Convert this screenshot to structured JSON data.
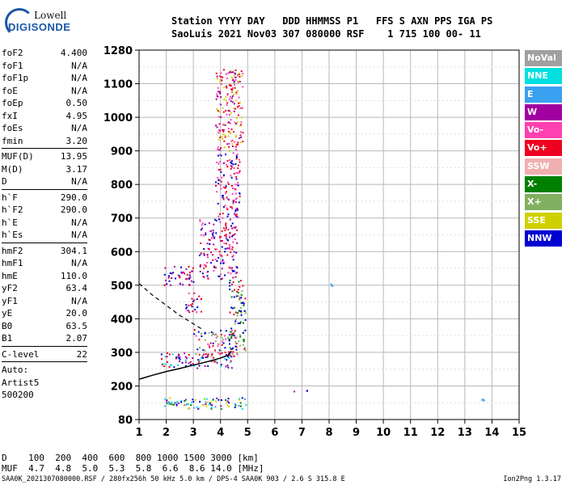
{
  "logo": {
    "line1": "Lowell",
    "line2": "DIGISONDE"
  },
  "header": {
    "line1": "Station YYYY DAY   DDD HHMMSS P1   FFS S AXN PPS IGA PS",
    "line2": "SaoLuis 2021 Nov03 307 080000 RSF    1 715 100 00- 11"
  },
  "params": [
    {
      "name": "foF2",
      "value": "4.400"
    },
    {
      "name": "foF1",
      "value": "N/A"
    },
    {
      "name": "foF1p",
      "value": "N/A"
    },
    {
      "name": "foE",
      "value": "N/A"
    },
    {
      "name": "foEp",
      "value": "0.50"
    },
    {
      "name": "fxI",
      "value": "4.95"
    },
    {
      "name": "foEs",
      "value": "N/A"
    },
    {
      "name": "fmin",
      "value": "3.20"
    },
    {
      "name": "MUF(D)",
      "value": "13.95"
    },
    {
      "name": "M(D)",
      "value": "3.17"
    },
    {
      "name": "D",
      "value": "N/A"
    },
    {
      "name": "h`F",
      "value": "290.0"
    },
    {
      "name": "h`F2",
      "value": "290.0"
    },
    {
      "name": "h`E",
      "value": "N/A"
    },
    {
      "name": "h`Es",
      "value": "N/A"
    },
    {
      "name": "hmF2",
      "value": "304.1"
    },
    {
      "name": "hmF1",
      "value": "N/A"
    },
    {
      "name": "hmE",
      "value": "110.0"
    },
    {
      "name": "yF2",
      "value": "63.4"
    },
    {
      "name": "yF1",
      "value": "N/A"
    },
    {
      "name": "yE",
      "value": "20.0"
    },
    {
      "name": "B0",
      "value": "63.5"
    },
    {
      "name": "B1",
      "value": "2.07"
    },
    {
      "name": "C-level",
      "value": "22"
    }
  ],
  "auto": {
    "line1": "Auto:",
    "line2": "Artist5",
    "line3": "500200"
  },
  "legend": [
    {
      "label": "NoVal",
      "color": "#a0a0a0"
    },
    {
      "label": "NNE",
      "color": "#00e0e0"
    },
    {
      "label": "E",
      "color": "#3aa0f0"
    },
    {
      "label": "W",
      "color": "#a000a0"
    },
    {
      "label": "Vo-",
      "color": "#ff40b0"
    },
    {
      "label": "Vo+",
      "color": "#ee0020"
    },
    {
      "label": "SSW",
      "color": "#f0b0b0"
    },
    {
      "label": "X-",
      "color": "#008000"
    },
    {
      "label": "X+",
      "color": "#80b060"
    },
    {
      "label": "SSE",
      "color": "#d0d000"
    },
    {
      "label": "NNW",
      "color": "#0000d0"
    }
  ],
  "chart_data": {
    "type": "scatter",
    "xlim": [
      1,
      15
    ],
    "ylim": [
      80,
      1280
    ],
    "xticks": [
      1,
      2,
      3,
      4,
      5,
      6,
      7,
      8,
      9,
      10,
      11,
      12,
      13,
      14,
      15
    ],
    "yticks": [
      80,
      200,
      300,
      400,
      500,
      600,
      700,
      800,
      900,
      1000,
      1100,
      1280
    ],
    "grid": true,
    "profile_line": {
      "x": [
        1.0,
        1.5,
        2.0,
        2.5,
        3.0,
        3.5,
        4.0,
        4.3,
        4.4
      ],
      "y": [
        220,
        232,
        243,
        252,
        262,
        272,
        283,
        292,
        304
      ]
    },
    "dashed_line": {
      "x": [
        1.0,
        1.5,
        2.0,
        2.5,
        3.0,
        3.3
      ],
      "y": [
        505,
        470,
        440,
        410,
        385,
        370
      ]
    },
    "trace_clusters": [
      {
        "x": [
          1.8,
          4.5
        ],
        "y": [
          255,
          300
        ],
        "colors": [
          "#ee0020",
          "#0000d0",
          "#00e0e0",
          "#a000a0"
        ]
      },
      {
        "x": [
          3.0,
          4.6
        ],
        "y": [
          290,
          370
        ],
        "colors": [
          "#ee0020",
          "#ff40b0",
          "#80b060",
          "#0000d0"
        ]
      },
      {
        "x": [
          4.3,
          4.9
        ],
        "y": [
          300,
          520
        ],
        "colors": [
          "#80b060",
          "#008000",
          "#0000d0",
          "#ee0020"
        ]
      },
      {
        "x": [
          2.7,
          3.3
        ],
        "y": [
          420,
          480
        ],
        "colors": [
          "#ee0020",
          "#0000d0",
          "#ff40b0"
        ]
      },
      {
        "x": [
          1.9,
          3.0
        ],
        "y": [
          500,
          560
        ],
        "colors": [
          "#0000d0",
          "#a000a0",
          "#ee0020"
        ]
      },
      {
        "x": [
          3.2,
          4.6
        ],
        "y": [
          520,
          700
        ],
        "colors": [
          "#ee0020",
          "#0000d0",
          "#a000a0",
          "#ff40b0"
        ]
      },
      {
        "x": [
          3.8,
          4.7
        ],
        "y": [
          700,
          900
        ],
        "colors": [
          "#ee0020",
          "#0000d0",
          "#ff40b0"
        ]
      },
      {
        "x": [
          3.8,
          4.8
        ],
        "y": [
          900,
          1180
        ],
        "colors": [
          "#ee0020",
          "#ff40b0",
          "#a000a0",
          "#d0d000"
        ]
      },
      {
        "x": [
          1.8,
          5.0
        ],
        "y": [
          120,
          160
        ],
        "colors": [
          "#00e0e0",
          "#0000d0",
          "#a000a0",
          "#3aa0f0",
          "#d0d000",
          "#008000"
        ]
      },
      {
        "x": [
          6.6,
          7.2
        ],
        "y": [
          180,
          186
        ],
        "colors": [
          "#a000a0",
          "#0000d0"
        ]
      },
      {
        "x": [
          8.0,
          8.1
        ],
        "y": [
          500,
          506
        ],
        "colors": [
          "#3aa0f0"
        ]
      },
      {
        "x": [
          13.6,
          13.7
        ],
        "y": [
          150,
          155
        ],
        "colors": [
          "#3aa0f0"
        ]
      }
    ]
  },
  "bottom": {
    "line1": "D    100  200  400  600  800 1000 1500 3000 [km]",
    "line2": "MUF  4.7  4.8  5.0  5.3  5.8  6.6  8.6 14.0 [MHz]"
  },
  "footer": "SAA0K_2021307080000.RSF / 280fx256h 50 kHz 5.0 km / DPS-4 SAA0K 903 / 2.6 S 315.8 E",
  "version": "Ion2Png 1.3.17"
}
